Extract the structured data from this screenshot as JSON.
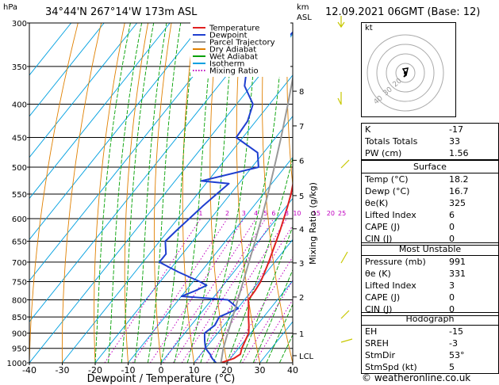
{
  "header": {
    "location": "34°44'N  267°14'W  173m  ASL",
    "datetime": "12.09.2021  06GMT  (Base: 12)",
    "hpa_label": "hPa",
    "km_label": "km",
    "asl_label": "ASL"
  },
  "legend": [
    {
      "name": "Temperature",
      "color": "#e02020",
      "style": "solid"
    },
    {
      "name": "Dewpoint",
      "color": "#1f3fd0",
      "style": "solid"
    },
    {
      "name": "Parcel Trajectory",
      "color": "#999999",
      "style": "solid"
    },
    {
      "name": "Dry Adiabat",
      "color": "#e08000",
      "style": "solid"
    },
    {
      "name": "Wet Adiabat",
      "color": "#00a000",
      "style": "solid"
    },
    {
      "name": "Isotherm",
      "color": "#00a0e0",
      "style": "solid"
    },
    {
      "name": "Mixing Ratio",
      "color": "#c000c0",
      "style": "dotted"
    }
  ],
  "chart_data": {
    "type": "line",
    "xlabel": "Dewpoint / Temperature (°C)",
    "ylabel": "Mixing Ratio (g/kg)",
    "xlim": [
      -40,
      40
    ],
    "ylim": [
      1000,
      300
    ],
    "pressure_ticks": [
      "300",
      "350",
      "400",
      "450",
      "500",
      "550",
      "600",
      "650",
      "700",
      "750",
      "800",
      "850",
      "900",
      "950",
      "1000"
    ],
    "temp_ticks": [
      "-40",
      "-30",
      "-20",
      "-10",
      "0",
      "10",
      "20",
      "30",
      "40"
    ],
    "height_ticks": [
      {
        "label": "8",
        "p": 382
      },
      {
        "label": "7",
        "p": 432
      },
      {
        "label": "6",
        "p": 488
      },
      {
        "label": "5",
        "p": 553
      },
      {
        "label": "4",
        "p": 622
      },
      {
        "label": "3",
        "p": 702
      },
      {
        "label": "2",
        "p": 792
      },
      {
        "label": "1",
        "p": 902
      },
      {
        "label": "LCL",
        "p": 975
      }
    ],
    "mixing_ratio_labels": [
      "1",
      "2",
      "3",
      "4",
      "5",
      "6",
      "8",
      "10",
      "15",
      "20",
      "25"
    ],
    "series": [
      {
        "name": "Temperature",
        "p": [
          1000,
          985,
          970,
          950,
          925,
          900,
          875,
          850,
          825,
          800,
          775,
          750,
          725,
          700,
          675,
          650,
          625,
          600,
          575,
          550,
          525,
          500,
          475,
          450,
          425,
          400,
          375,
          350,
          325,
          300
        ],
        "t": [
          18.2,
          21.0,
          22.0,
          21.0,
          20.2,
          19.4,
          17.5,
          15.4,
          13.4,
          11.2,
          11.0,
          10.5,
          9.4,
          8.2,
          6.8,
          5.4,
          3.9,
          2.2,
          0.4,
          -1.6,
          -4.0,
          -7.2,
          -8.8,
          -11.8,
          -15.2,
          -18.8,
          -22.6,
          -26.8,
          -31.4,
          -36.4
        ]
      },
      {
        "name": "Dewpoint",
        "p": [
          1000,
          985,
          970,
          950,
          925,
          900,
          875,
          850,
          825,
          800,
          790,
          775,
          760,
          750,
          725,
          700,
          680,
          650,
          625,
          600,
          575,
          550,
          530,
          525,
          500,
          475,
          450,
          425,
          400,
          375,
          350,
          325,
          300
        ],
        "t": [
          16.7,
          14.5,
          12.8,
          10.0,
          7.9,
          6.0,
          7.2,
          6.5,
          10.2,
          5.0,
          -10.0,
          -7.2,
          -5.0,
          -8.0,
          -16.8,
          -25.0,
          -25.0,
          -28.3,
          -27.5,
          -26.5,
          -25.5,
          -24.2,
          -23.0,
          -32.0,
          -18.0,
          -21.8,
          -32.0,
          -32.5,
          -35.0,
          -42.0,
          -46.0,
          -41.0,
          -40.0
        ]
      },
      {
        "name": "Parcel Trajectory",
        "p": [
          1000,
          950,
          900,
          850,
          800,
          750,
          700,
          650,
          600,
          550,
          500,
          450,
          400,
          350,
          300
        ],
        "t": [
          18.2,
          15.4,
          13.0,
          10.6,
          8.0,
          5.2,
          2.2,
          -1.0,
          -4.6,
          -8.6,
          -13.2,
          -18.4,
          -24.4,
          -31.4,
          -39.6
        ]
      }
    ]
  },
  "hodograph": {
    "label": "kt",
    "ring_labels": [
      "40",
      "30",
      "20"
    ]
  },
  "indices": {
    "top": [
      {
        "label": "K",
        "value": "-17"
      },
      {
        "label": "Totals Totals",
        "value": "33"
      },
      {
        "label": "PW (cm)",
        "value": "1.56"
      }
    ],
    "surface": {
      "title": "Surface",
      "rows": [
        {
          "label": "Temp (°C)",
          "value": "18.2"
        },
        {
          "label": "Dewp (°C)",
          "value": "16.7"
        },
        {
          "label": "θe(K)",
          "value": "325"
        },
        {
          "label": "Lifted Index",
          "value": "6"
        },
        {
          "label": "CAPE (J)",
          "value": "0"
        },
        {
          "label": "CIN (J)",
          "value": "0"
        }
      ]
    },
    "most_unstable": {
      "title": "Most Unstable",
      "rows": [
        {
          "label": "Pressure (mb)",
          "value": "991"
        },
        {
          "label": "θe (K)",
          "value": "331"
        },
        {
          "label": "Lifted Index",
          "value": "3"
        },
        {
          "label": "CAPE (J)",
          "value": "0"
        },
        {
          "label": "CIN (J)",
          "value": "0"
        }
      ]
    },
    "hodograph": {
      "title": "Hodograph",
      "rows": [
        {
          "label": "EH",
          "value": "-15"
        },
        {
          "label": "SREH",
          "value": "-3"
        },
        {
          "label": "StmDir",
          "value": "53°"
        },
        {
          "label": "StmSpd (kt)",
          "value": "5"
        }
      ]
    }
  },
  "credit": "© weatheronline.co.uk"
}
